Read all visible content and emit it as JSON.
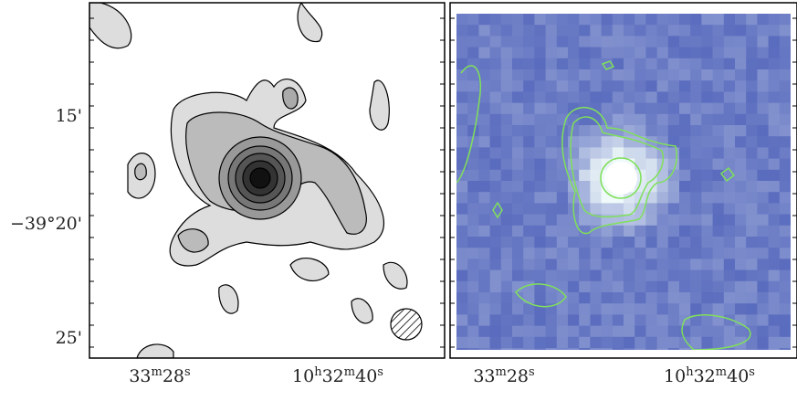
{
  "y_labels": [
    "15'",
    "−39°20'",
    "25'"
  ],
  "left_x_labels": [
    [
      {
        "text": "33"
      },
      {
        "text": "m",
        "sup": true
      },
      {
        "text": "28"
      },
      {
        "text": "s",
        "sup": true
      }
    ],
    [
      {
        "text": "10"
      },
      {
        "text": "h",
        "sup": true
      },
      {
        "text": "32"
      },
      {
        "text": "m",
        "sup": true
      },
      {
        "text": "40"
      },
      {
        "text": "s",
        "sup": true
      }
    ]
  ],
  "right_x_labels": [
    [
      {
        "text": "33"
      },
      {
        "text": "m",
        "sup": true
      },
      {
        "text": "28"
      },
      {
        "text": "s",
        "sup": true
      }
    ],
    [
      {
        "text": "10"
      },
      {
        "text": "h",
        "sup": true
      },
      {
        "text": "32"
      },
      {
        "text": "m",
        "sup": true
      },
      {
        "text": "40"
      },
      {
        "text": "s",
        "sup": true
      }
    ]
  ]
}
